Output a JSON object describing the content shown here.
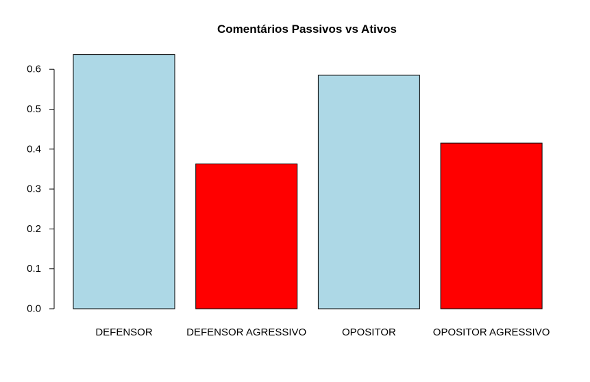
{
  "chart_data": {
    "type": "bar",
    "title": "Comentários Passivos vs Ativos",
    "xlabel": "",
    "ylabel": "",
    "categories": [
      "DEFENSOR",
      "DEFENSOR AGRESSIVO",
      "OPOSITOR",
      "OPOSITOR AGRESSIVO"
    ],
    "values": [
      0.637,
      0.363,
      0.585,
      0.415
    ],
    "bar_colors": [
      "#add8e6",
      "#ff0000",
      "#add8e6",
      "#ff0000"
    ],
    "y_ticks": [
      "0.0",
      "0.1",
      "0.2",
      "0.3",
      "0.4",
      "0.5",
      "0.6"
    ],
    "ylim": [
      0,
      0.6
    ],
    "grid": false,
    "legend": "none"
  }
}
